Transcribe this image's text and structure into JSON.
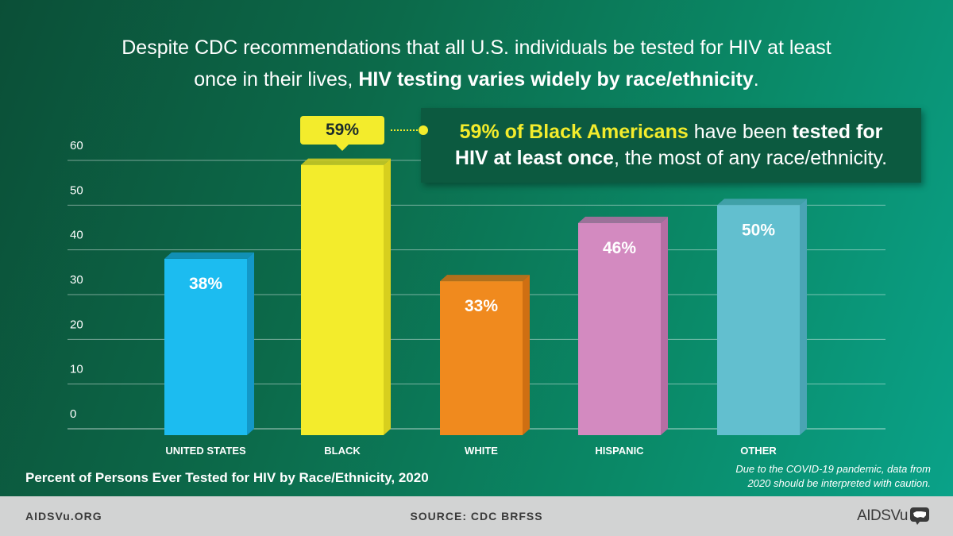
{
  "headline": {
    "line1": "Despite CDC recommendations that all U.S. individuals be tested for HIV at least",
    "line2_prefix": "once in their lives, ",
    "line2_bold": "HIV testing varies widely by race/ethnicity",
    "line2_suffix": "."
  },
  "callout": {
    "tag": "59%",
    "highlight": "59% of Black Americans",
    "text1": " have been ",
    "bold1": "tested for",
    "bold2": "HIV at least once",
    "text2": ", the most of any race/ethnicity."
  },
  "chart_data": {
    "type": "bar",
    "title": "Percent of Persons Ever Tested for HIV by Race/Ethnicity, 2020",
    "categories": [
      "UNITED STATES",
      "BLACK",
      "WHITE",
      "HISPANIC",
      "OTHER"
    ],
    "values": [
      38,
      59,
      33,
      46,
      50
    ],
    "data_labels": [
      "38%",
      "59%",
      "33%",
      "46%",
      "50%"
    ],
    "colors": [
      "#1cbcf0",
      "#f3ec2c",
      "#f08a1e",
      "#d38ac0",
      "#62bfcf"
    ],
    "side_colors": [
      "#1398c8",
      "#d7cf1e",
      "#cf6f12",
      "#b56ea3",
      "#4aa4b4"
    ],
    "yticks": [
      0,
      10,
      20,
      30,
      40,
      50,
      60
    ],
    "ylim": [
      0,
      60
    ],
    "grid": true
  },
  "disclaimer": {
    "line1": "Due to the COVID-19 pandemic, data from",
    "line2": "2020 should be interpreted with caution."
  },
  "footer": {
    "left": "AIDSVu.ORG",
    "center": "SOURCE: CDC BRFSS",
    "logo": "AIDSVu",
    "logo_icon": "us-map-icon",
    "background": "#d2d3d3"
  }
}
